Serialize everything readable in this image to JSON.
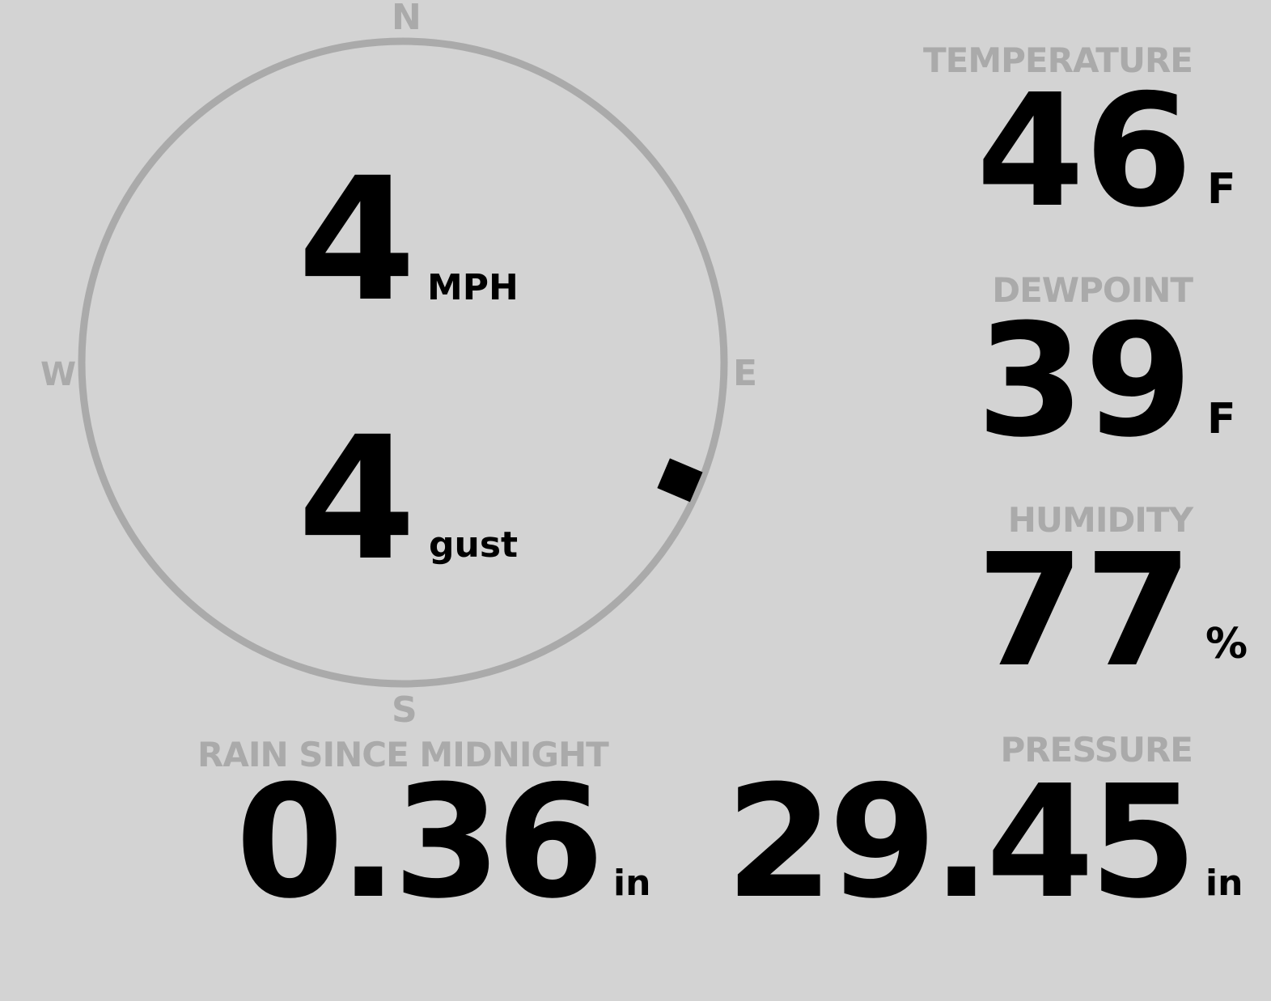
{
  "compass": {
    "north": "N",
    "south": "S",
    "east": "E",
    "west": "W",
    "wind_direction_deg": 113,
    "ring_color": "#aaaaaa"
  },
  "wind": {
    "speed": "4",
    "speed_unit": "MPH",
    "gust": "4",
    "gust_unit": "gust"
  },
  "temperature": {
    "label": "TEMPERATURE",
    "value": "46",
    "unit": "F"
  },
  "dewpoint": {
    "label": "DEWPOINT",
    "value": "39",
    "unit": "F"
  },
  "humidity": {
    "label": "HUMIDITY",
    "value": "77",
    "unit": "%"
  },
  "rain": {
    "label": "RAIN SINCE MIDNIGHT",
    "value": "0.36",
    "unit": "in"
  },
  "pressure": {
    "label": "PRESSURE",
    "value": "29.45",
    "unit": "in"
  }
}
